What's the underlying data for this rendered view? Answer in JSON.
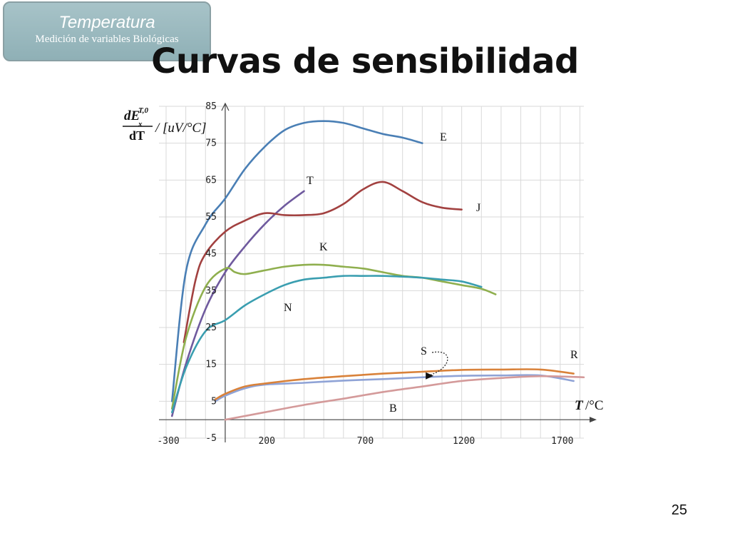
{
  "badge": {
    "title": "Temperatura",
    "subtitle": "Medición de variables Biológicas"
  },
  "slide": {
    "title": "Curvas de sensibilidad",
    "page_number": "25"
  },
  "colors": {
    "E": "#4a7fb5",
    "J": "#a24140",
    "T": "#6f5a9e",
    "K": "#8faf4e",
    "N": "#3a9eb0",
    "S": "#8fa3d6",
    "R": "#d9823a",
    "B": "#d49a9a"
  },
  "chart_data": {
    "type": "line",
    "title": "",
    "ylabel_main": "dE",
    "ylabel_sub": "x",
    "ylabel_sup": "T,0",
    "ylabel_den": "dT",
    "ylabel_unit": "/ [uV/°C]",
    "xlabel_var": "T",
    "xlabel_unit": "/°C",
    "xlim": [
      -300,
      1820
    ],
    "ylim": [
      -5,
      85
    ],
    "x_ticks": [
      "-300",
      "200",
      "700",
      "1200",
      "1700"
    ],
    "y_ticks": [
      "85",
      "75",
      "65",
      "55",
      "45",
      "35",
      "25",
      "15",
      "5",
      "-5"
    ],
    "grid": true,
    "series": [
      {
        "name": "E",
        "x": [
          -270,
          -200,
          -100,
          0,
          100,
          200,
          300,
          400,
          500,
          600,
          700,
          800,
          900,
          1000
        ],
        "y": [
          5,
          40,
          53,
          60,
          68,
          74,
          78.5,
          80.5,
          81,
          80.5,
          79,
          77.5,
          76.5,
          75
        ]
      },
      {
        "name": "T",
        "x": [
          -270,
          -200,
          -100,
          0,
          100,
          200,
          300,
          400
        ],
        "y": [
          1,
          15,
          30,
          40,
          47,
          53,
          58,
          62
        ]
      },
      {
        "name": "J",
        "x": [
          -210,
          -150,
          -100,
          0,
          100,
          200,
          300,
          400,
          500,
          600,
          700,
          800,
          900,
          1000,
          1100,
          1200
        ],
        "y": [
          21,
          38,
          45,
          51,
          54,
          56,
          55.5,
          55.5,
          56,
          58.5,
          62.5,
          64.5,
          62,
          59,
          57.5,
          57
        ]
      },
      {
        "name": "K",
        "x": [
          -270,
          -200,
          -100,
          0,
          50,
          100,
          200,
          300,
          400,
          500,
          600,
          700,
          800,
          900,
          1000,
          1100,
          1200,
          1300,
          1372
        ],
        "y": [
          3,
          22,
          36,
          41,
          40,
          39.5,
          40.5,
          41.5,
          42,
          42,
          41.5,
          41,
          40,
          39,
          38.5,
          37.5,
          36.5,
          35.5,
          34
        ]
      },
      {
        "name": "N",
        "x": [
          -270,
          -200,
          -100,
          0,
          100,
          200,
          300,
          400,
          500,
          600,
          700,
          800,
          900,
          1000,
          1100,
          1200,
          1300
        ],
        "y": [
          2,
          14,
          24,
          27,
          31,
          34,
          36.5,
          38,
          38.5,
          39,
          39,
          39,
          38.8,
          38.5,
          38,
          37.5,
          36
        ]
      },
      {
        "name": "S",
        "x": [
          -50,
          0,
          100,
          200,
          400,
          600,
          800,
          1000,
          1200,
          1400,
          1600,
          1768
        ],
        "y": [
          5,
          6.5,
          8.5,
          9.5,
          10,
          10.6,
          11,
          11.5,
          11.9,
          12,
          12,
          10.5
        ]
      },
      {
        "name": "R",
        "x": [
          -50,
          0,
          100,
          200,
          400,
          600,
          800,
          1000,
          1200,
          1400,
          1600,
          1768
        ],
        "y": [
          5.5,
          7,
          9,
          9.8,
          11,
          11.8,
          12.5,
          13,
          13.5,
          13.6,
          13.6,
          12.5
        ]
      },
      {
        "name": "B",
        "x": [
          0,
          200,
          400,
          600,
          800,
          1000,
          1200,
          1400,
          1600,
          1820
        ],
        "y": [
          0,
          2,
          4,
          5.7,
          7.5,
          9,
          10.5,
          11.3,
          11.8,
          11.5
        ]
      }
    ],
    "annotation": {
      "label": "S",
      "target_x": 1050,
      "target_y": 11.7
    }
  }
}
